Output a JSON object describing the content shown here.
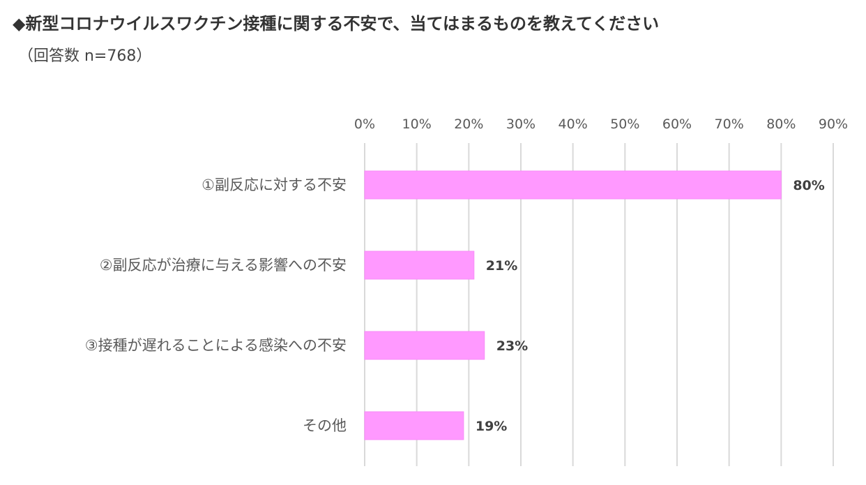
{
  "chart_data": {
    "type": "bar",
    "orientation": "horizontal",
    "title": "◆新型コロナウイルスワクチン接種に関する不安で、当てはまるものを教えてください",
    "subtitle": "（回答数 n=768）",
    "xlabel": "",
    "ylabel": "",
    "xlim": [
      0,
      90
    ],
    "ticks": [
      0,
      10,
      20,
      30,
      40,
      50,
      60,
      70,
      80,
      90
    ],
    "tick_labels": [
      "0%",
      "10%",
      "20%",
      "30%",
      "40%",
      "50%",
      "60%",
      "70%",
      "80%",
      "90%"
    ],
    "tick_position": "top",
    "grid": true,
    "legend": "none",
    "bar_color": "#FF99FF",
    "categories": [
      "①副反応に対する不安",
      "②副反応が治療に与える影響への不安",
      "③接種が遅れることによる感染への不安",
      "その他"
    ],
    "values": [
      80,
      21,
      23,
      19
    ],
    "data_labels": [
      "80%",
      "21%",
      "23%",
      "19%"
    ]
  }
}
